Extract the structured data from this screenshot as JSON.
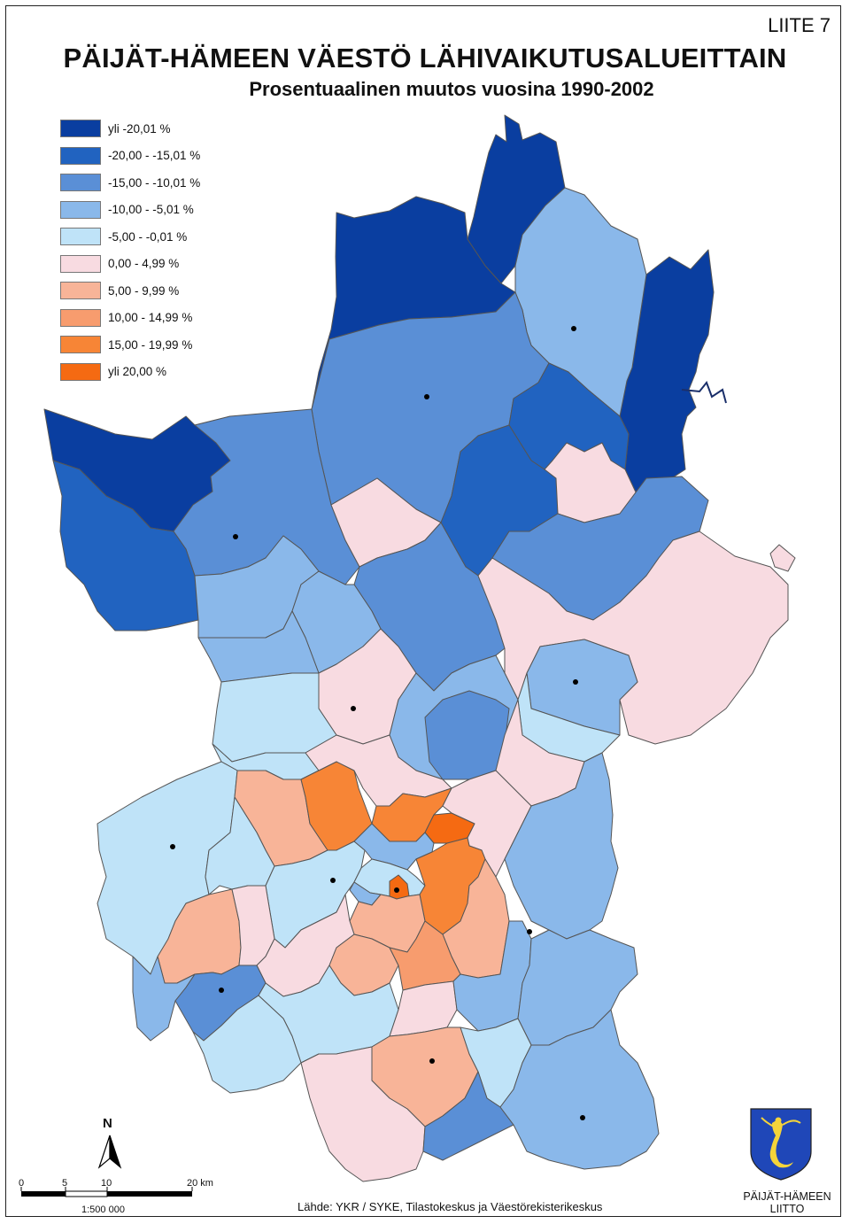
{
  "header": {
    "appendix": "LIITE 7",
    "title": "PÄIJÄT-HÄMEEN VÄESTÖ LÄHIVAIKUTUSALUEITTAIN",
    "subtitle": "Prosentuaalinen muutos vuosina 1990-2002"
  },
  "legend": {
    "items": [
      {
        "label": "yli -20,01 %",
        "color": "#0a3ea0"
      },
      {
        "label": "-20,00 - -15,01 %",
        "color": "#2163c0"
      },
      {
        "label": "-15,00 - -10,01 %",
        "color": "#5a8fd6"
      },
      {
        "label": "-10,00 - -5,01 %",
        "color": "#8ab8ea"
      },
      {
        "label": "-5,00 - -0,01 %",
        "color": "#bfe3f8"
      },
      {
        "label": "0,00 - 4,99 %",
        "color": "#f8dbe1"
      },
      {
        "label": "5,00 - 9,99 %",
        "color": "#f8b498"
      },
      {
        "label": "10,00 - 14,99 %",
        "color": "#f79c6e"
      },
      {
        "label": "15,00 - 19,99 %",
        "color": "#f78536"
      },
      {
        "label": "yli 20,00 %",
        "color": "#f56a12"
      }
    ]
  },
  "scalebar": {
    "ticks": [
      "0",
      "5",
      "10",
      "20 km"
    ],
    "ratio": "1:500 000"
  },
  "north_arrow": {
    "label": "N",
    "icon": "north-arrow-icon"
  },
  "source": "Lähde: YKR / SYKE, Tilastokeskus ja Väestörekisterikeskus",
  "organization": {
    "line1": "PÄIJÄT-HÄMEEN",
    "line2": "LIITTO",
    "logo": "mermaid-coat-of-arms-icon"
  }
}
